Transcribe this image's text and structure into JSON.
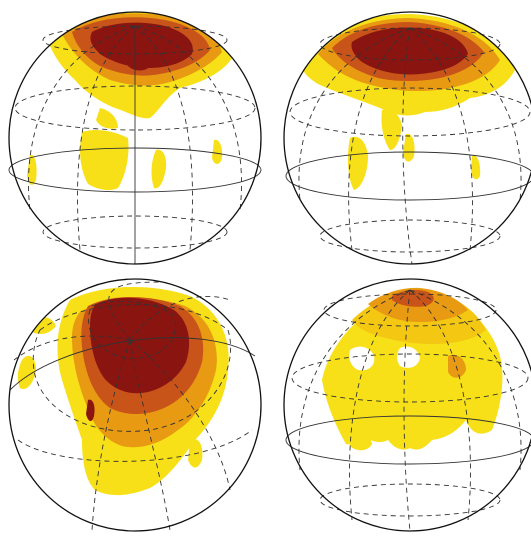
{
  "figure": {
    "palette": {
      "light": "#f7e018",
      "yellow": "#f4c713",
      "orange": "#e79a12",
      "red": "#c9541a",
      "dark": "#8a1410",
      "grid": "#333333",
      "outline": "#111111"
    },
    "panels": [
      {
        "id": "top-left",
        "pole": "north-top",
        "tilt": "upright",
        "coverage": "polar-cap-with-southward-streaks",
        "peak_region": "north-pole"
      },
      {
        "id": "top-right",
        "pole": "north-top",
        "tilt": "slight",
        "coverage": "polar-cap-with-southward-streaks",
        "peak_region": "north-pole"
      },
      {
        "id": "bottom-left",
        "pole": "tilted-toward-viewer",
        "tilt": "strong",
        "coverage": "large-central-blob",
        "peak_region": "pole-center"
      },
      {
        "id": "bottom-right",
        "pole": "north-top",
        "tilt": "upright",
        "coverage": "wide-yellow-band-with-gaps",
        "peak_region": "north-pole"
      }
    ]
  }
}
